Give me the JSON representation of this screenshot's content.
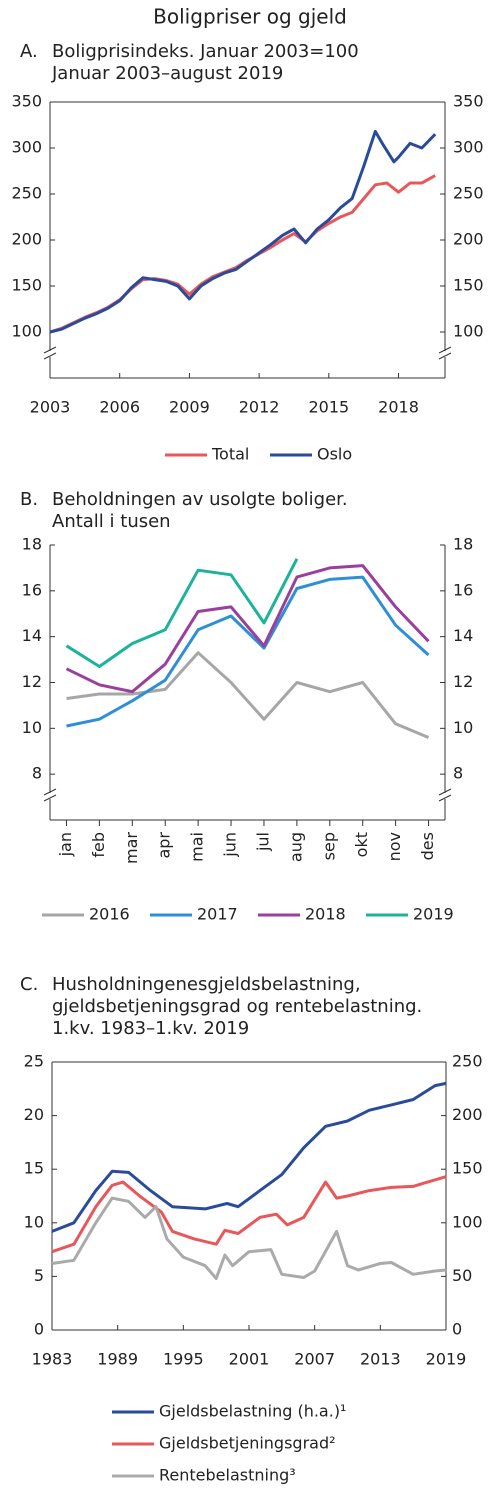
{
  "title": "Boligpriser og gjeld",
  "chart_data": [
    {
      "type": "line",
      "label": "A.",
      "title_lines": [
        "Boligprisindeks. Januar 2003=100",
        "Januar 2003–august 2019"
      ],
      "xlim": [
        2003,
        2020
      ],
      "xticks": [
        2003,
        2006,
        2009,
        2012,
        2015,
        2018
      ],
      "ylim": [
        50,
        350
      ],
      "yticks": [
        100,
        150,
        200,
        250,
        300,
        350
      ],
      "right_ticks": true,
      "axis_break": true,
      "series": [
        {
          "name": "Total",
          "color": "#e8575a",
          "x": [
            2003,
            2003.5,
            2004,
            2004.5,
            2005,
            2005.5,
            2006,
            2006.5,
            2007,
            2007.5,
            2008,
            2008.5,
            2009,
            2009.5,
            2010,
            2010.5,
            2011,
            2011.5,
            2012,
            2012.5,
            2013,
            2013.5,
            2014,
            2014.5,
            2015,
            2015.5,
            2016,
            2016.5,
            2017,
            2017.5,
            2018,
            2018.5,
            2019,
            2019.58
          ],
          "values": [
            100,
            104,
            110,
            116,
            121,
            127,
            135,
            147,
            157,
            158,
            156,
            152,
            141,
            152,
            160,
            165,
            170,
            178,
            185,
            192,
            200,
            207,
            198,
            210,
            218,
            225,
            230,
            245,
            260,
            262,
            252,
            262,
            262,
            270
          ]
        },
        {
          "name": "Oslo",
          "color": "#2a4b9b",
          "x": [
            2003,
            2003.5,
            2004,
            2004.5,
            2005,
            2005.5,
            2006,
            2006.5,
            2007,
            2007.5,
            2008,
            2008.5,
            2009,
            2009.5,
            2010,
            2010.5,
            2011,
            2011.5,
            2012,
            2012.5,
            2013,
            2013.5,
            2014,
            2014.5,
            2015,
            2015.5,
            2016,
            2016.5,
            2017,
            2017.3,
            2017.8,
            2018,
            2018.5,
            2019,
            2019.58
          ],
          "values": [
            100,
            103,
            109,
            115,
            120,
            126,
            134,
            148,
            159,
            157,
            155,
            150,
            136,
            150,
            158,
            164,
            168,
            177,
            186,
            195,
            205,
            212,
            197,
            212,
            222,
            235,
            245,
            280,
            318,
            305,
            285,
            290,
            305,
            300,
            315
          ]
        }
      ]
    },
    {
      "type": "line",
      "label": "B.",
      "title_lines": [
        "Beholdningen av usolgte boliger.",
        "Antall i tusen"
      ],
      "categories": [
        "jan",
        "feb",
        "mar",
        "apr",
        "mai",
        "jun",
        "jul",
        "aug",
        "sep",
        "okt",
        "nov",
        "des"
      ],
      "ylim": [
        6,
        18
      ],
      "yticks": [
        8,
        10,
        12,
        14,
        16,
        18
      ],
      "right_ticks": true,
      "axis_break": true,
      "series": [
        {
          "name": "2016",
          "color": "#a6a6a6",
          "values": [
            11.3,
            11.5,
            11.5,
            11.7,
            13.3,
            12.0,
            10.4,
            12.0,
            11.6,
            12.0,
            10.2,
            9.6
          ]
        },
        {
          "name": "2017",
          "color": "#2f8fd6",
          "values": [
            10.1,
            10.4,
            11.2,
            12.1,
            14.3,
            14.9,
            13.5,
            16.1,
            16.5,
            16.6,
            14.5,
            13.2
          ]
        },
        {
          "name": "2018",
          "color": "#9b3f9e",
          "values": [
            12.6,
            11.9,
            11.6,
            12.8,
            15.1,
            15.3,
            13.6,
            16.6,
            17.0,
            17.1,
            15.3,
            13.8
          ]
        },
        {
          "name": "2019",
          "color": "#1db39b",
          "values": [
            13.6,
            12.7,
            13.7,
            14.3,
            16.9,
            16.7,
            14.6,
            17.4,
            null,
            null,
            null,
            null
          ]
        }
      ]
    },
    {
      "type": "line",
      "label": "C.",
      "title_lines": [
        "Husholdningenesgjeldsbelastning,",
        "gjeldsbetjeningsgrad og rentebelastning.",
        "1.kv. 1983–1.kv. 2019"
      ],
      "xlim": [
        1983,
        2019
      ],
      "xticks": [
        1983,
        1989,
        1995,
        2001,
        2007,
        2013,
        2019
      ],
      "ylim": [
        0,
        25
      ],
      "yticks": [
        0,
        5,
        10,
        15,
        20,
        25
      ],
      "y2lim": [
        0,
        250
      ],
      "y2ticks": [
        0,
        50,
        100,
        150,
        200,
        250
      ],
      "series": [
        {
          "name": "Gjeldsbelastning (h.a.)¹",
          "color": "#2a4b9b",
          "axis": "y2",
          "x": [
            1983,
            1985,
            1987,
            1988.5,
            1990,
            1992,
            1994,
            1997,
            1999,
            2000,
            2002,
            2004,
            2006,
            2008,
            2010,
            2012,
            2014,
            2016,
            2018,
            2019
          ],
          "values": [
            92,
            100,
            130,
            148,
            147,
            130,
            115,
            113,
            118,
            115,
            130,
            145,
            170,
            190,
            195,
            205,
            210,
            215,
            228,
            230
          ]
        },
        {
          "name": "Gjeldsbetjeningsgrad²",
          "color": "#e8575a",
          "x": [
            1983,
            1985,
            1987,
            1988.5,
            1989.5,
            1991,
            1993,
            1994,
            1996,
            1998,
            1998.8,
            2000,
            2002,
            2003.5,
            2004.5,
            2006,
            2008,
            2009,
            2010,
            2012,
            2014,
            2016,
            2017,
            2019
          ],
          "values": [
            7.3,
            8,
            11.5,
            13.5,
            13.8,
            12.5,
            11,
            9.2,
            8.5,
            8,
            9.3,
            9,
            10.5,
            10.8,
            9.8,
            10.5,
            13.8,
            12.3,
            12.5,
            13,
            13.3,
            13.4,
            13.7,
            14.3
          ]
        },
        {
          "name": "Rentebelastning³",
          "color": "#aaaaaa",
          "x": [
            1983,
            1985,
            1987,
            1988.5,
            1990,
            1991.5,
            1992.5,
            1993.5,
            1995,
            1997,
            1998,
            1998.8,
            1999.5,
            2001,
            2003,
            2004,
            2006,
            2007,
            2009,
            2010,
            2011,
            2013,
            2014,
            2016,
            2018,
            2019
          ],
          "values": [
            6.2,
            6.5,
            10,
            12.3,
            12,
            10.5,
            11.5,
            8.5,
            6.8,
            6,
            4.8,
            7,
            6,
            7.3,
            7.5,
            5.2,
            4.9,
            5.5,
            9.2,
            6,
            5.6,
            6.2,
            6.3,
            5.2,
            5.5,
            5.6
          ]
        }
      ]
    }
  ]
}
